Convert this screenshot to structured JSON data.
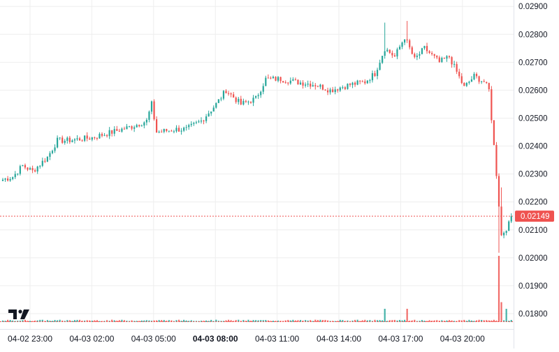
{
  "colors": {
    "up": "#26a69a",
    "down": "#ef5350",
    "grid": "#eeeeee",
    "background": "#ffffff",
    "last_price_line": "#ef5350",
    "logo": "#131722"
  },
  "logo_icon": "tradingview-logo-icon",
  "chart_data": {
    "type": "candlestick",
    "time_labels": [
      {
        "label": "04-02 23:00",
        "bold": false
      },
      {
        "label": "04-03 02:00",
        "bold": false
      },
      {
        "label": "04-03 05:00",
        "bold": false
      },
      {
        "label": "04-03 08:00",
        "bold": true
      },
      {
        "label": "04-03 11:00",
        "bold": false
      },
      {
        "label": "04-03 14:00",
        "bold": false
      },
      {
        "label": "04-03 17:00",
        "bold": false
      },
      {
        "label": "04-03 20:00",
        "bold": false
      }
    ],
    "price_ticks": [
      "0.02900",
      "0.02800",
      "0.02700",
      "0.02600",
      "0.02500",
      "0.02400",
      "0.02300",
      "0.02200",
      "0.02100",
      "0.02000",
      "0.01900",
      "0.01800"
    ],
    "price_range": [
      0.01745,
      0.02923
    ],
    "last_price": "0.02149",
    "grid": true,
    "candles_per_hour": 4,
    "anchors": [
      [
        0,
        0.0228
      ],
      [
        4,
        0.0229
      ],
      [
        8,
        0.0233
      ],
      [
        12,
        0.0231
      ],
      [
        18,
        0.0236
      ],
      [
        22,
        0.0242
      ],
      [
        26,
        0.0242
      ],
      [
        36,
        0.0243
      ],
      [
        44,
        0.0245
      ],
      [
        52,
        0.0247
      ],
      [
        58,
        0.0249
      ],
      [
        60,
        0.0255
      ],
      [
        62,
        0.0245
      ],
      [
        70,
        0.0246
      ],
      [
        74,
        0.0246
      ],
      [
        80,
        0.0249
      ],
      [
        86,
        0.0255
      ],
      [
        90,
        0.026
      ],
      [
        96,
        0.0255
      ],
      [
        102,
        0.0257
      ],
      [
        106,
        0.0264
      ],
      [
        112,
        0.0264
      ],
      [
        118,
        0.0263
      ],
      [
        126,
        0.0262
      ],
      [
        132,
        0.026
      ],
      [
        140,
        0.0262
      ],
      [
        146,
        0.0263
      ],
      [
        150,
        0.0266
      ],
      [
        154,
        0.0275
      ],
      [
        158,
        0.0272
      ],
      [
        162,
        0.0279
      ],
      [
        166,
        0.0271
      ],
      [
        170,
        0.0275
      ],
      [
        176,
        0.027
      ],
      [
        180,
        0.0272
      ],
      [
        186,
        0.0261
      ],
      [
        190,
        0.0265
      ],
      [
        194,
        0.0263
      ],
      [
        196,
        0.026
      ],
      [
        199,
        0.023
      ],
      [
        201,
        0.0208
      ],
      [
        204,
        0.0212
      ],
      [
        205,
        0.02149
      ]
    ],
    "spikes": [
      {
        "i": 154,
        "high": 0.02842
      },
      {
        "i": 163,
        "high": 0.02848
      },
      {
        "i": 200,
        "low": 0.02018
      },
      {
        "i": 201,
        "high": 0.02252
      }
    ],
    "volume_spikes": [
      {
        "i": 154,
        "v": 0.2
      },
      {
        "i": 163,
        "v": 0.2
      },
      {
        "i": 200,
        "v": 1.0
      },
      {
        "i": 201,
        "v": 0.3
      },
      {
        "i": 203,
        "v": 0.2
      }
    ]
  }
}
